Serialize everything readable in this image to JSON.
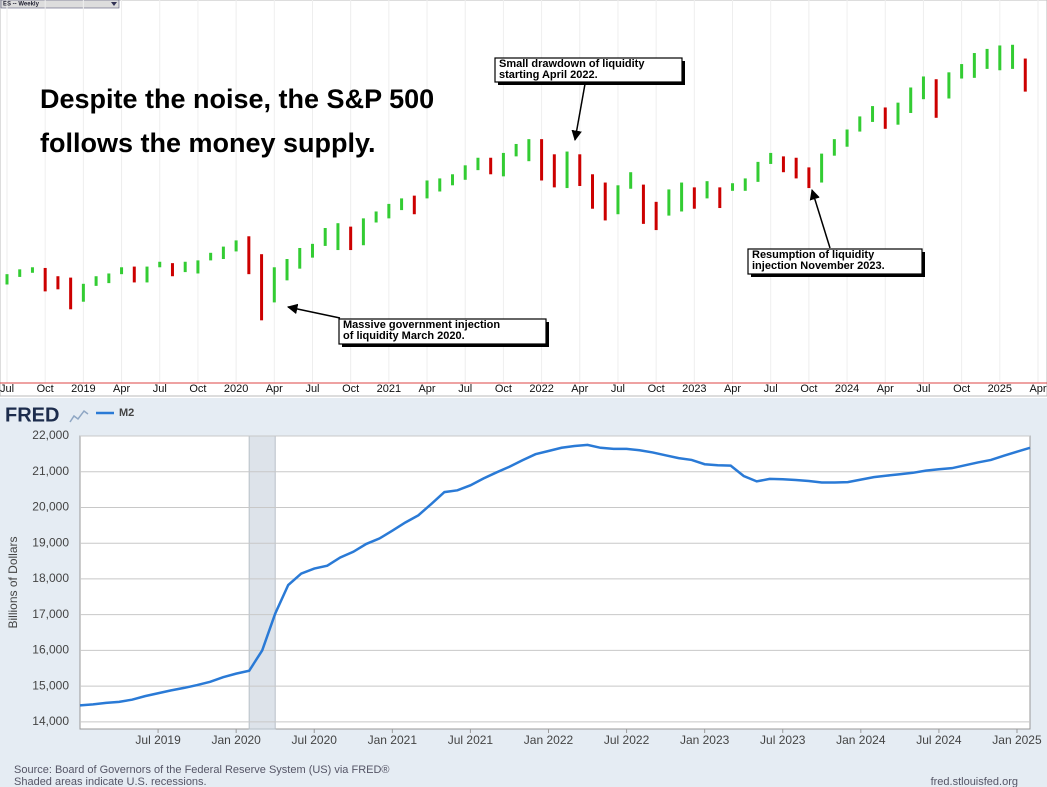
{
  "chart_data": [
    {
      "type": "range-bar",
      "instrument": "ES -- Weekly",
      "headline": [
        "Despite the noise, the S&P 500",
        "follows the money supply."
      ],
      "categories": [
        "Jul",
        null,
        null,
        "Oct",
        null,
        null,
        "2019",
        null,
        null,
        "Apr",
        null,
        null,
        "Jul",
        null,
        null,
        "Oct",
        null,
        null,
        "2020",
        null,
        null,
        "Apr",
        null,
        null,
        "Jul",
        null,
        null,
        "Oct",
        null,
        null,
        "2021",
        null,
        null,
        "Apr",
        null,
        null,
        "Jul",
        null,
        null,
        "Oct",
        null,
        null,
        "2022",
        null,
        null,
        "Apr",
        null,
        null,
        "Jul",
        null,
        null,
        "Oct",
        null,
        null,
        "2023",
        null,
        null,
        "Apr",
        null,
        null,
        "Jul",
        null,
        null,
        "Oct",
        null,
        null,
        "2024",
        null,
        null,
        "Apr",
        null,
        null,
        "Jul",
        null,
        null,
        "Oct",
        null,
        null,
        "2025",
        null,
        null,
        "Apr"
      ],
      "low": [
        2700,
        2810,
        2870,
        2600,
        2630,
        2340,
        2450,
        2680,
        2720,
        2850,
        2730,
        2730,
        2950,
        2820,
        2880,
        2860,
        3050,
        3070,
        3180,
        2850,
        2180,
        2440,
        2760,
        2930,
        3090,
        3260,
        3200,
        3200,
        3270,
        3600,
        3660,
        3780,
        3720,
        3950,
        4050,
        4140,
        4220,
        4360,
        4300,
        4270,
        4560,
        4490,
        4210,
        4110,
        4100,
        4130,
        3800,
        3630,
        3720,
        4090,
        3580,
        3490,
        3700,
        3760,
        3800,
        3950,
        3810,
        4060,
        4060,
        4190,
        4450,
        4330,
        4240,
        4100,
        4180,
        4570,
        4700,
        4920,
        5060,
        4960,
        5020,
        5190,
        5390,
        5120,
        5400,
        5690,
        5700,
        5830,
        5810,
        5830,
        5500,
        null
      ],
      "high": [
        2850,
        2920,
        2950,
        2940,
        2820,
        2800,
        2710,
        2820,
        2860,
        2950,
        2960,
        2960,
        3030,
        3010,
        3030,
        3050,
        3160,
        3250,
        3340,
        3400,
        3140,
        2950,
        3070,
        3230,
        3290,
        3520,
        3590,
        3540,
        3660,
        3760,
        3870,
        3950,
        3990,
        4210,
        4240,
        4300,
        4430,
        4540,
        4540,
        4610,
        4740,
        4810,
        4810,
        4590,
        4630,
        4590,
        4300,
        4180,
        4140,
        4330,
        4150,
        3900,
        4080,
        4180,
        4110,
        4200,
        4110,
        4170,
        4240,
        4480,
        4610,
        4560,
        4540,
        4400,
        4600,
        4810,
        4950,
        5140,
        5290,
        5270,
        5340,
        5560,
        5720,
        5680,
        5780,
        5900,
        6060,
        6120,
        6170,
        6180,
        5980,
        null
      ],
      "up_color": "#33cc33",
      "down_color": "#cc0000",
      "ylim": [
        1270,
        6830
      ],
      "annotations": [
        {
          "lines": [
            "Small drawdown of liquidity",
            "starting April 2022."
          ]
        },
        {
          "lines": [
            "Resumption of liquidity",
            "injection November 2023."
          ]
        },
        {
          "lines": [
            "Massive government injection",
            "of liquidity March 2020."
          ]
        }
      ]
    },
    {
      "type": "line",
      "logo": "FRED",
      "x": [
        "2019-01",
        "2019-02",
        "2019-03",
        "2019-04",
        "2019-05",
        "2019-06",
        "2019-07",
        "2019-08",
        "2019-09",
        "2019-10",
        "2019-11",
        "2019-12",
        "2020-01",
        "2020-02",
        "2020-03",
        "2020-04",
        "2020-05",
        "2020-06",
        "2020-07",
        "2020-08",
        "2020-09",
        "2020-10",
        "2020-11",
        "2020-12",
        "2021-01",
        "2021-02",
        "2021-03",
        "2021-04",
        "2021-05",
        "2021-06",
        "2021-07",
        "2021-08",
        "2021-09",
        "2021-10",
        "2021-11",
        "2021-12",
        "2022-01",
        "2022-02",
        "2022-03",
        "2022-04",
        "2022-05",
        "2022-06",
        "2022-07",
        "2022-08",
        "2022-09",
        "2022-10",
        "2022-11",
        "2022-12",
        "2023-01",
        "2023-02",
        "2023-03",
        "2023-04",
        "2023-05",
        "2023-06",
        "2023-07",
        "2023-08",
        "2023-09",
        "2023-10",
        "2023-11",
        "2023-12",
        "2024-01",
        "2024-02",
        "2024-03",
        "2024-04",
        "2024-05",
        "2024-06",
        "2024-07",
        "2024-08",
        "2024-09",
        "2024-10",
        "2024-11",
        "2024-12",
        "2025-01",
        "2025-02"
      ],
      "series": [
        {
          "name": "M2",
          "color": "#2a7ad6",
          "values": [
            14460,
            14490,
            14530,
            14560,
            14620,
            14720,
            14800,
            14880,
            14950,
            15030,
            15120,
            15250,
            15350,
            15430,
            16000,
            17030,
            17830,
            18150,
            18290,
            18370,
            18600,
            18760,
            18980,
            19130,
            19350,
            19580,
            19780,
            20100,
            20430,
            20480,
            20620,
            20810,
            20980,
            21140,
            21320,
            21490,
            21580,
            21670,
            21720,
            21750,
            21670,
            21640,
            21640,
            21600,
            21540,
            21460,
            21380,
            21330,
            21210,
            21180,
            21170,
            20880,
            20730,
            20800,
            20790,
            20770,
            20740,
            20700,
            20700,
            20710,
            20780,
            20850,
            20890,
            20930,
            20970,
            21030,
            21070,
            21100,
            21180,
            21260,
            21330,
            21450,
            21560,
            21670
          ]
        }
      ],
      "ylabel": "Billions of Dollars",
      "xlim": [
        "2019-01",
        "2025-02"
      ],
      "xticks": [
        {
          "value": "2019-07",
          "label": "Jul 2019"
        },
        {
          "value": "2020-01",
          "label": "Jan 2020"
        },
        {
          "value": "2020-07",
          "label": "Jul 2020"
        },
        {
          "value": "2021-01",
          "label": "Jan 2021"
        },
        {
          "value": "2021-07",
          "label": "Jul 2021"
        },
        {
          "value": "2022-01",
          "label": "Jan 2022"
        },
        {
          "value": "2022-07",
          "label": "Jul 2022"
        },
        {
          "value": "2023-01",
          "label": "Jan 2023"
        },
        {
          "value": "2023-07",
          "label": "Jul 2023"
        },
        {
          "value": "2024-01",
          "label": "Jan 2024"
        },
        {
          "value": "2024-07",
          "label": "Jul 2024"
        },
        {
          "value": "2025-01",
          "label": "Jan 2025"
        }
      ],
      "ylim": [
        13800,
        22000
      ],
      "yticks": [
        {
          "value": 14000,
          "label": "14,000"
        },
        {
          "value": 15000,
          "label": "15,000"
        },
        {
          "value": 16000,
          "label": "16,000"
        },
        {
          "value": 17000,
          "label": "17,000"
        },
        {
          "value": 18000,
          "label": "18,000"
        },
        {
          "value": 19000,
          "label": "19,000"
        },
        {
          "value": 20000,
          "label": "20,000"
        },
        {
          "value": 21000,
          "label": "21,000"
        },
        {
          "value": 22000,
          "label": "22,000"
        }
      ],
      "grid": true,
      "recessions": [
        [
          "2020-02",
          "2020-04"
        ]
      ],
      "source": [
        "Source: Board of Governors of the Federal Reserve System (US) via FRED®",
        "Shaded areas indicate U.S. recessions."
      ],
      "credit": "fred.stlouisfed.org"
    }
  ]
}
